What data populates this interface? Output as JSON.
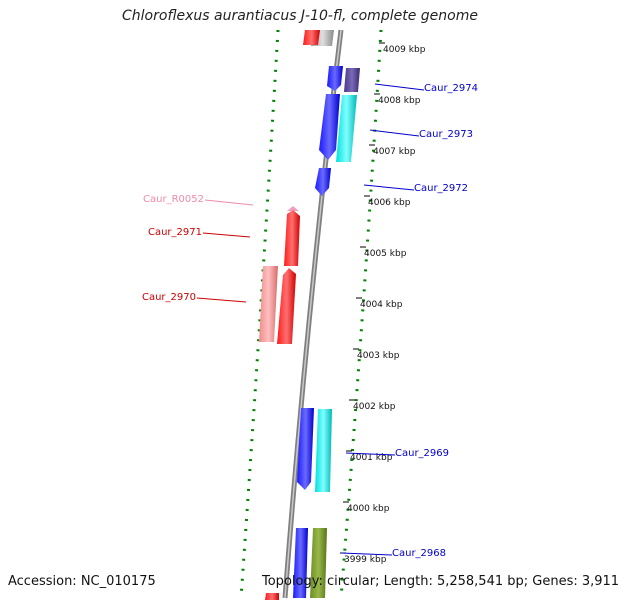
{
  "header": {
    "title": "Chloroflexus aurantiacus J-10-fl, complete genome"
  },
  "footer": {
    "accession": "Accession: NC_010175",
    "summary": "Topology: circular; Length: 5,258,541 bp; Genes: 3,911"
  },
  "scale": {
    "unit": "kbp",
    "ticks": [
      {
        "label": "4009 kbp"
      },
      {
        "label": "4008 kbp"
      },
      {
        "label": "4007 kbp"
      },
      {
        "label": "4006 kbp"
      },
      {
        "label": "4005 kbp"
      },
      {
        "label": "4004 kbp"
      },
      {
        "label": "4003 kbp"
      },
      {
        "label": "4002 kbp"
      },
      {
        "label": "4001 kbp"
      },
      {
        "label": "4000 kbp"
      },
      {
        "label": "3999 kbp"
      }
    ]
  },
  "genes": [
    {
      "label": "Caur_2974",
      "color": "#0000cc"
    },
    {
      "label": "Caur_2973",
      "color": "#0000cc"
    },
    {
      "label": "Caur_2972",
      "color": "#0000cc"
    },
    {
      "label": "Caur_R0052",
      "color": "#f08aa8"
    },
    {
      "label": "Caur_2971",
      "color": "#cc0000"
    },
    {
      "label": "Caur_2970",
      "color": "#cc0000"
    },
    {
      "label": "Caur_2969",
      "color": "#0000cc"
    },
    {
      "label": "Caur_2968",
      "color": "#0000cc"
    }
  ],
  "colors": {
    "forward_cds": "#0000ff",
    "reverse_cds": "#ff0000",
    "forward_cog": "#00e5e5",
    "reverse_cog": "#f08a8a",
    "backbone": "#808080",
    "gc_ticks": "#008000"
  }
}
